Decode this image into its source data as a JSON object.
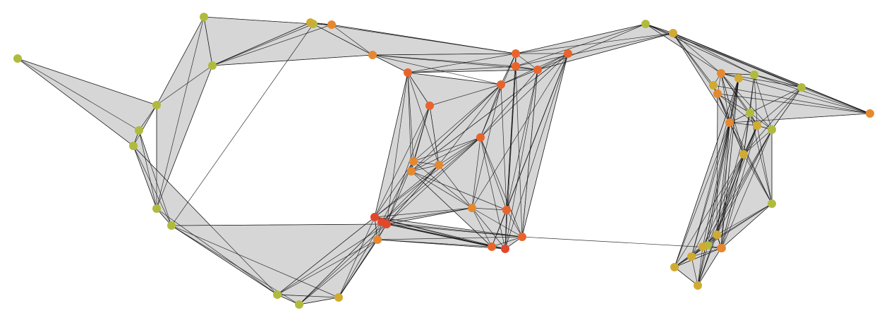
{
  "colors": {
    "background": "#ffffff",
    "hull_fill": "#d6d6d6",
    "edge": "#111111",
    "palette": {
      "olive": "#b0bb3e",
      "yellow": "#d1aa31",
      "orange": "#e6882f",
      "orange_red": "#e8642c",
      "red": "#e2462b"
    }
  },
  "graph": {
    "nodes": [
      {
        "id": "a1",
        "c": "olive"
      },
      {
        "id": "a2",
        "c": "olive"
      },
      {
        "id": "a3",
        "c": "olive"
      },
      {
        "id": "a4",
        "c": "olive"
      },
      {
        "id": "a5",
        "c": "olive"
      },
      {
        "id": "a6",
        "c": "olive"
      },
      {
        "id": "a7",
        "c": "olive"
      },
      {
        "id": "a8",
        "c": "olive"
      },
      {
        "id": "a9",
        "c": "orange"
      },
      {
        "id": "a10",
        "c": "yellow"
      },
      {
        "id": "b1",
        "c": "olive"
      },
      {
        "id": "b2",
        "c": "olive"
      },
      {
        "id": "b3",
        "c": "olive"
      },
      {
        "id": "b4",
        "c": "yellow"
      },
      {
        "id": "c1",
        "c": "orange"
      },
      {
        "id": "c2",
        "c": "orange_red"
      },
      {
        "id": "c3",
        "c": "orange_red"
      },
      {
        "id": "c4",
        "c": "orange_red"
      },
      {
        "id": "c5",
        "c": "orange_red"
      },
      {
        "id": "c6",
        "c": "orange_red"
      },
      {
        "id": "c7",
        "c": "orange_red"
      },
      {
        "id": "c8",
        "c": "orange"
      },
      {
        "id": "c9",
        "c": "orange_red"
      },
      {
        "id": "c10",
        "c": "orange"
      },
      {
        "id": "c11",
        "c": "orange"
      },
      {
        "id": "c12",
        "c": "orange"
      },
      {
        "id": "c13",
        "c": "orange_red"
      },
      {
        "id": "c14",
        "c": "orange_red"
      },
      {
        "id": "c15",
        "c": "red"
      },
      {
        "id": "c16",
        "c": "red"
      },
      {
        "id": "c17",
        "c": "red"
      },
      {
        "id": "c18",
        "c": "orange"
      },
      {
        "id": "c19",
        "c": "orange_red"
      },
      {
        "id": "c20",
        "c": "red"
      },
      {
        "id": "c21",
        "c": "orange_red"
      },
      {
        "id": "d1",
        "c": "olive"
      },
      {
        "id": "d2",
        "c": "yellow"
      },
      {
        "id": "d3",
        "c": "orange"
      },
      {
        "id": "d4",
        "c": "olive"
      },
      {
        "id": "d5",
        "c": "olive"
      },
      {
        "id": "d6",
        "c": "orange"
      },
      {
        "id": "d7",
        "c": "yellow"
      },
      {
        "id": "d8",
        "c": "orange"
      },
      {
        "id": "d9",
        "c": "orange"
      },
      {
        "id": "d10",
        "c": "olive"
      },
      {
        "id": "d11",
        "c": "yellow"
      },
      {
        "id": "d12",
        "c": "yellow"
      },
      {
        "id": "d13",
        "c": "olive"
      },
      {
        "id": "d14",
        "c": "olive"
      },
      {
        "id": "d15",
        "c": "yellow"
      },
      {
        "id": "d16",
        "c": "olive"
      },
      {
        "id": "d17",
        "c": "yellow"
      },
      {
        "id": "d18",
        "c": "yellow"
      },
      {
        "id": "d19",
        "c": "yellow"
      },
      {
        "id": "d20",
        "c": "yellow"
      },
      {
        "id": "d21",
        "c": "yellow"
      },
      {
        "id": "d22",
        "c": "orange"
      },
      {
        "id": "d23",
        "c": "yellow"
      }
    ],
    "cliques": [
      [
        "a1",
        "a2",
        "a3",
        "a4"
      ],
      [
        "a2",
        "a5",
        "a6",
        "a7"
      ],
      [
        "a5",
        "a7",
        "a8"
      ],
      [
        "a7",
        "a8",
        "a9",
        "a10"
      ],
      [
        "a7",
        "a10",
        "c1"
      ],
      [
        "a9",
        "a10",
        "c1",
        "c3"
      ],
      [
        "a3",
        "a4",
        "a6",
        "b1"
      ],
      [
        "a4",
        "a6",
        "b1",
        "b2"
      ],
      [
        "b1",
        "b2",
        "b3",
        "b4",
        "c16"
      ],
      [
        "b2",
        "b4",
        "c15",
        "c18"
      ],
      [
        "b3",
        "b4",
        "c17",
        "c18",
        "c16"
      ],
      [
        "c1",
        "c2",
        "c3",
        "c4",
        "c5"
      ],
      [
        "c2",
        "c6",
        "c7",
        "c8",
        "c11"
      ],
      [
        "c6",
        "c9",
        "c10",
        "c11",
        "c12"
      ],
      [
        "c3",
        "c5",
        "c6",
        "c9",
        "c13",
        "c14"
      ],
      [
        "c8",
        "c9",
        "c10",
        "c12",
        "c15",
        "c16",
        "c17"
      ],
      [
        "c9",
        "c12",
        "c13",
        "c14",
        "c20",
        "c21"
      ],
      [
        "c15",
        "c16",
        "c17",
        "c18",
        "c19",
        "c20",
        "c21"
      ],
      [
        "c11",
        "c12",
        "c13",
        "c14",
        "c19"
      ],
      [
        "c2",
        "c7",
        "c8",
        "c15",
        "c16",
        "c10"
      ],
      [
        "c4",
        "c5",
        "c21",
        "c13",
        "c20"
      ],
      [
        "c3",
        "c4",
        "c5",
        "d1",
        "d2"
      ],
      [
        "d1",
        "d2",
        "d3",
        "d4",
        "d5",
        "d6"
      ],
      [
        "d2",
        "d3",
        "d6",
        "d7",
        "d8",
        "d9"
      ],
      [
        "d3",
        "d4",
        "d5",
        "d10",
        "d11",
        "d12",
        "d13"
      ],
      [
        "d8",
        "d9",
        "d10",
        "d11",
        "d12",
        "d14",
        "d15"
      ],
      [
        "d12",
        "d13",
        "d14",
        "d15",
        "d16",
        "d17",
        "d18"
      ],
      [
        "d9",
        "d11",
        "d15",
        "d19",
        "d20",
        "d21",
        "d22"
      ],
      [
        "d15",
        "d16",
        "d17",
        "d19",
        "d20",
        "d21",
        "d23"
      ],
      [
        "d19",
        "d22",
        "d23",
        "d20"
      ]
    ],
    "extra_edges": [
      [
        "c21",
        "d22"
      ],
      [
        "a8",
        "b1"
      ],
      [
        "c2",
        "c5"
      ],
      [
        "c1",
        "c6"
      ]
    ]
  }
}
